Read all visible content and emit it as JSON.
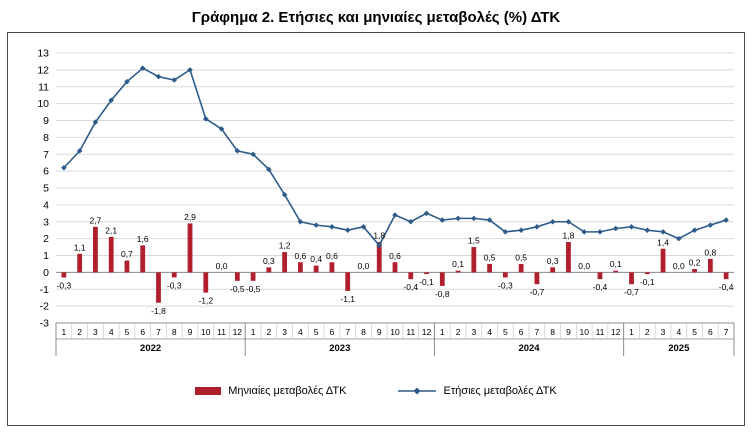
{
  "title": "Γράφημα 2. Ετήσιες και μηνιαίες μεταβολές (%) ΔΤΚ",
  "chart_data": {
    "type": "combo-bar-line",
    "decimal_separator": ",",
    "grid": true,
    "legend_position": "bottom",
    "y_axis": {
      "min": -3,
      "max": 13,
      "step": 1,
      "ticks": [
        13,
        12,
        11,
        10,
        9,
        8,
        7,
        6,
        5,
        4,
        3,
        2,
        1,
        0,
        -1,
        -2,
        -3
      ]
    },
    "x_groups": [
      {
        "year": "2022",
        "months": [
          "1",
          "2",
          "3",
          "4",
          "5",
          "6",
          "7",
          "8",
          "9",
          "10",
          "11",
          "12"
        ]
      },
      {
        "year": "2023",
        "months": [
          "1",
          "2",
          "3",
          "4",
          "5",
          "6",
          "7",
          "8",
          "9",
          "10",
          "11",
          "12"
        ]
      },
      {
        "year": "2024",
        "months": [
          "1",
          "2",
          "3",
          "4",
          "5",
          "6",
          "7",
          "8",
          "9",
          "10",
          "11",
          "12"
        ]
      },
      {
        "year": "2025",
        "months": [
          "1",
          "2",
          "3",
          "4",
          "5",
          "6",
          "7"
        ]
      }
    ],
    "series": [
      {
        "name": "Μηνιαίες μεταβολές ΔΤΚ",
        "type": "bar",
        "color": "#b11f2e",
        "data_labels": true,
        "values": [
          -0.3,
          1.1,
          2.7,
          2.1,
          0.7,
          1.6,
          -1.8,
          -0.3,
          2.9,
          -1.2,
          0.0,
          -0.5,
          -0.5,
          0.3,
          1.2,
          0.6,
          0.4,
          0.6,
          -1.1,
          0.0,
          1.8,
          0.6,
          -0.4,
          -0.1,
          -0.8,
          0.1,
          1.5,
          0.5,
          -0.3,
          0.5,
          -0.7,
          0.3,
          1.8,
          0.0,
          -0.4,
          0.1,
          -0.7,
          -0.1,
          1.4,
          0.0,
          0.2,
          0.8,
          -0.4
        ]
      },
      {
        "name": "Ετήσιες μεταβολές ΔΤΚ",
        "type": "line",
        "color": "#2e5c8a",
        "marker": "diamond",
        "data_labels": false,
        "values": [
          6.2,
          7.2,
          8.9,
          10.2,
          11.3,
          12.1,
          11.6,
          11.4,
          12.0,
          9.1,
          8.5,
          7.2,
          7.0,
          6.1,
          4.6,
          3.0,
          2.8,
          2.7,
          2.5,
          2.7,
          1.6,
          3.4,
          3.0,
          3.5,
          3.1,
          3.2,
          3.2,
          3.1,
          2.4,
          2.5,
          2.7,
          3.0,
          3.0,
          2.4,
          2.4,
          2.6,
          2.7,
          2.5,
          2.4,
          2.0,
          2.5,
          2.8,
          3.1
        ]
      }
    ]
  }
}
